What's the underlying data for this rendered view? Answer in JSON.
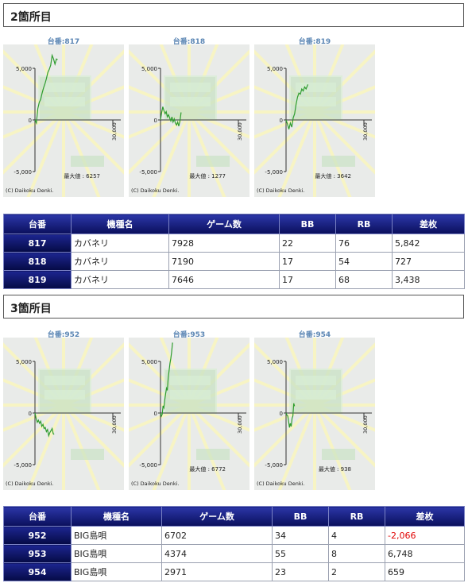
{
  "sections": [
    {
      "title": "2箇所目",
      "charts": [
        {
          "label": "台番:817",
          "max_label": "最大値 : 6257",
          "copyright": "(C) Daikoku Denki."
        },
        {
          "label": "台番:818",
          "max_label": "最大値 : 1277",
          "copyright": "(C) Daikoku Denki."
        },
        {
          "label": "台番:819",
          "max_label": "最大値 : 3642",
          "copyright": "(C) Daikoku Denki."
        }
      ],
      "table": {
        "headers": [
          "台番",
          "機種名",
          "ゲーム数",
          "BB",
          "RB",
          "差枚"
        ],
        "rows": [
          [
            "817",
            "カバネリ",
            "7928",
            "22",
            "76",
            "5,842"
          ],
          [
            "818",
            "カバネリ",
            "7190",
            "17",
            "54",
            "727"
          ],
          [
            "819",
            "カバネリ",
            "7646",
            "17",
            "68",
            "3,438"
          ]
        ]
      }
    },
    {
      "title": "3箇所目",
      "charts": [
        {
          "label": "台番:952",
          "max_label": "",
          "copyright": "(C) Daikoku Denki."
        },
        {
          "label": "台番:953",
          "max_label": "最大値 : 6772",
          "copyright": "(C) Daikoku Denki."
        },
        {
          "label": "台番:954",
          "max_label": "最大値 : 938",
          "copyright": "(C) Daikoku Denki."
        }
      ],
      "table": {
        "headers": [
          "台番",
          "機種名",
          "ゲーム数",
          "BB",
          "RB",
          "差枚"
        ],
        "rows": [
          [
            "952",
            "BIG島唄",
            "6702",
            "34",
            "4",
            "-2,066"
          ],
          [
            "953",
            "BIG島唄",
            "4374",
            "55",
            "8",
            "6,748"
          ],
          [
            "954",
            "BIG島唄",
            "2971",
            "23",
            "2",
            "659"
          ]
        ]
      }
    }
  ],
  "chart_data": [
    {
      "type": "line",
      "title": "台番:817",
      "y_ticks": [
        "5,000",
        "0",
        "-5,000"
      ],
      "x_tick": "30,000",
      "ylim": [
        -5000,
        5000
      ],
      "xlim": [
        0,
        30000
      ],
      "x": [
        0,
        500,
        1000,
        1500,
        2000,
        2500,
        3000,
        3500,
        4000,
        4500,
        5000,
        5500,
        6000,
        6500,
        7000,
        7500,
        7928
      ],
      "y": [
        0,
        -300,
        1100,
        1700,
        2000,
        2600,
        3100,
        3500,
        4000,
        4600,
        4900,
        5300,
        6257,
        5900,
        5400,
        5900,
        5842
      ]
    },
    {
      "type": "line",
      "title": "台番:818",
      "y_ticks": [
        "5,000",
        "0",
        "-5,000"
      ],
      "x_tick": "30,000",
      "ylim": [
        -5000,
        5000
      ],
      "xlim": [
        0,
        30000
      ],
      "x": [
        0,
        400,
        800,
        1200,
        1600,
        2000,
        2400,
        2800,
        3200,
        3600,
        4000,
        4400,
        4800,
        5200,
        5600,
        6000,
        6400,
        6800,
        7190
      ],
      "y": [
        0,
        700,
        1277,
        900,
        600,
        800,
        300,
        500,
        200,
        -100,
        300,
        -200,
        100,
        -300,
        -500,
        -200,
        -600,
        -100,
        727
      ]
    },
    {
      "type": "line",
      "title": "台番:819",
      "y_ticks": [
        "5,000",
        "0",
        "-5,000"
      ],
      "x_tick": "30,000",
      "ylim": [
        -5000,
        5000
      ],
      "xlim": [
        0,
        30000
      ],
      "x": [
        0,
        500,
        1000,
        1500,
        2000,
        2500,
        3000,
        3500,
        4000,
        4500,
        5000,
        5500,
        6000,
        6500,
        7000,
        7646
      ],
      "y": [
        0,
        -400,
        -900,
        -300,
        -700,
        200,
        600,
        1500,
        2200,
        2600,
        2500,
        3000,
        2800,
        3200,
        3000,
        3438
      ]
    },
    {
      "type": "line",
      "title": "台番:952",
      "y_ticks": [
        "5,000",
        "0",
        "-5,000"
      ],
      "x_tick": "30,000",
      "ylim": [
        -5000,
        5000
      ],
      "xlim": [
        0,
        30000
      ],
      "x": [
        0,
        400,
        800,
        1200,
        1600,
        2000,
        2400,
        2800,
        3200,
        3600,
        4000,
        4400,
        4800,
        5200,
        5600,
        6000,
        6400,
        6702
      ],
      "y": [
        0,
        -500,
        -900,
        -700,
        -1000,
        -800,
        -1300,
        -1100,
        -1500,
        -1400,
        -1800,
        -1600,
        -2200,
        -1900,
        -1700,
        -1500,
        -2000,
        -2066
      ]
    },
    {
      "type": "line",
      "title": "台番:953",
      "y_ticks": [
        "5,000",
        "0",
        "-5,000"
      ],
      "x_tick": "30,000",
      "ylim": [
        -5000,
        5000
      ],
      "xlim": [
        0,
        30000
      ],
      "x": [
        0,
        300,
        600,
        900,
        1200,
        1500,
        1800,
        2100,
        2400,
        2700,
        3000,
        3300,
        3600,
        3900,
        4200,
        4374
      ],
      "y": [
        0,
        -300,
        -100,
        700,
        500,
        1300,
        1900,
        2400,
        2200,
        3400,
        4100,
        4800,
        5300,
        5900,
        6772,
        6748
      ]
    },
    {
      "type": "line",
      "title": "台番:954",
      "y_ticks": [
        "5,000",
        "0",
        "-5,000"
      ],
      "x_tick": "30,000",
      "ylim": [
        -5000,
        5000
      ],
      "xlim": [
        0,
        30000
      ],
      "x": [
        0,
        300,
        600,
        900,
        1200,
        1500,
        1800,
        2100,
        2400,
        2700,
        2971
      ],
      "y": [
        0,
        -200,
        -300,
        -800,
        -1400,
        -1000,
        -1300,
        -500,
        -300,
        938,
        659
      ]
    }
  ]
}
